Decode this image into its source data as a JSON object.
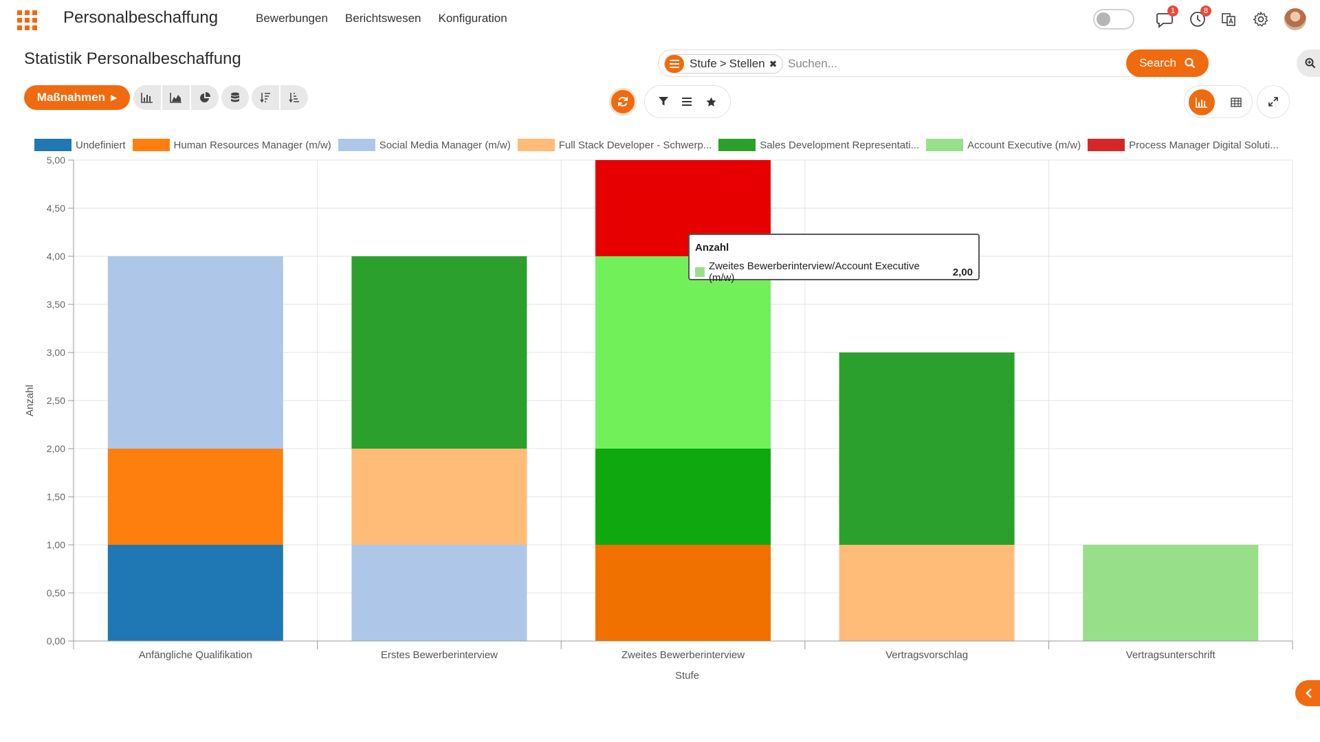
{
  "navbar": {
    "app_title": "Personalbeschaffung",
    "menu": [
      "Bewerbungen",
      "Berichtswesen",
      "Konfiguration"
    ],
    "messages_badge": "1",
    "activities_badge": "8"
  },
  "control_panel": {
    "page_title": "Statistik Personalbeschaffung",
    "facet_label": "Stufe",
    "facet_separator": ">",
    "facet_value": "Stellen",
    "search_placeholder": "Suchen...",
    "search_button": "Search",
    "actions_button": "Maßnahmen"
  },
  "colors": {
    "accent": "#f06a0f"
  },
  "chart_data": {
    "type": "bar",
    "stacked": true,
    "xlabel": "Stufe",
    "ylabel": "Anzahl",
    "ylim": [
      0,
      5
    ],
    "y_ticks": [
      "0,00",
      "0,50",
      "1,00",
      "1,50",
      "2,00",
      "2,50",
      "3,00",
      "3,50",
      "4,00",
      "4,50",
      "5,00"
    ],
    "categories": [
      "Anfängliche Qualifikation",
      "Erstes Bewerberinterview",
      "Zweites Bewerberinterview",
      "Vertragsvorschlag",
      "Vertragsunterschrift"
    ],
    "legend_position": "top",
    "series": [
      {
        "name": "Undefiniert",
        "color": "#1f77b4",
        "values": [
          1,
          0,
          0,
          0,
          0
        ]
      },
      {
        "name": "Human Resources Manager (m/w)",
        "color": "#ff7f0e",
        "values": [
          1,
          0,
          1,
          0,
          0
        ]
      },
      {
        "name": "Social Media Manager (m/w)",
        "color": "#aec7e8",
        "values": [
          2,
          1,
          0,
          0,
          0
        ]
      },
      {
        "name": "Full Stack Developer - Schwerp...",
        "color": "#ffbb78",
        "values": [
          0,
          1,
          0,
          1,
          0
        ]
      },
      {
        "name": "Sales Development Representati...",
        "color": "#2ca02c",
        "values": [
          0,
          2,
          1,
          2,
          0
        ]
      },
      {
        "name": "Account Executive (m/w)",
        "color": "#98df8a",
        "values": [
          0,
          0,
          2,
          0,
          1
        ]
      },
      {
        "name": "Process Manager Digital Soluti...",
        "color": "#d62728",
        "values": [
          0,
          0,
          1,
          0,
          0
        ]
      }
    ],
    "tooltip": {
      "title": "Anzahl",
      "label": "Zweites Bewerberinterview/Account Executive (m/w)",
      "value": "2,00"
    }
  }
}
